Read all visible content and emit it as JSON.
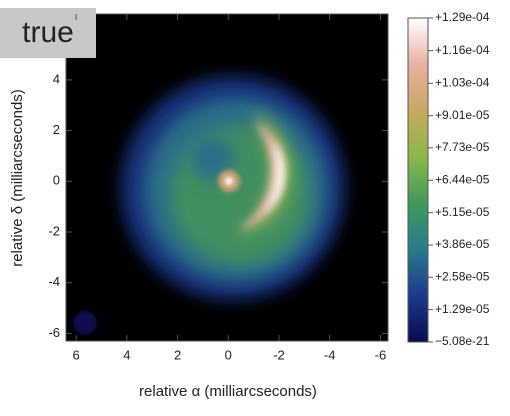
{
  "chart_data": {
    "type": "image",
    "badge": "true",
    "xlabel": "relative α (milliarcseconds)",
    "ylabel": "relative δ (milliarcseconds)",
    "xlim": [
      6.4,
      -6.3
    ],
    "xticks": [
      6,
      4,
      2,
      0,
      -2,
      -4,
      -6
    ],
    "ylim": [
      -6.3,
      6.6
    ],
    "yticks": [
      -6,
      -4,
      -2,
      0,
      2,
      4
    ],
    "colorbar": {
      "lim": [
        -5.08e-21,
        0.000129
      ],
      "colors": [
        "#0a0a50",
        "#1a3a8c",
        "#2a7a8c",
        "#3f9a5a",
        "#8ab84a",
        "#c8a860",
        "#e8b0a0",
        "#ffffff"
      ],
      "ticks": [
        {
          "value": 0.000129,
          "label": "+1.29e-04"
        },
        {
          "value": 0.000116,
          "label": "+1.16e-04"
        },
        {
          "value": 0.000103,
          "label": "+1.03e-04"
        },
        {
          "value": 9.01e-05,
          "label": "+9.01e-05"
        },
        {
          "value": 7.73e-05,
          "label": "+7.73e-05"
        },
        {
          "value": 6.44e-05,
          "label": "+6.44e-05"
        },
        {
          "value": 5.15e-05,
          "label": "+5.15e-05"
        },
        {
          "value": 3.86e-05,
          "label": "+3.86e-05"
        },
        {
          "value": 2.58e-05,
          "label": "+2.58e-05"
        },
        {
          "value": 1.29e-05,
          "label": "+1.29e-05"
        },
        {
          "value": -5.08e-21,
          "label": "−5.08e-21"
        }
      ]
    }
  }
}
